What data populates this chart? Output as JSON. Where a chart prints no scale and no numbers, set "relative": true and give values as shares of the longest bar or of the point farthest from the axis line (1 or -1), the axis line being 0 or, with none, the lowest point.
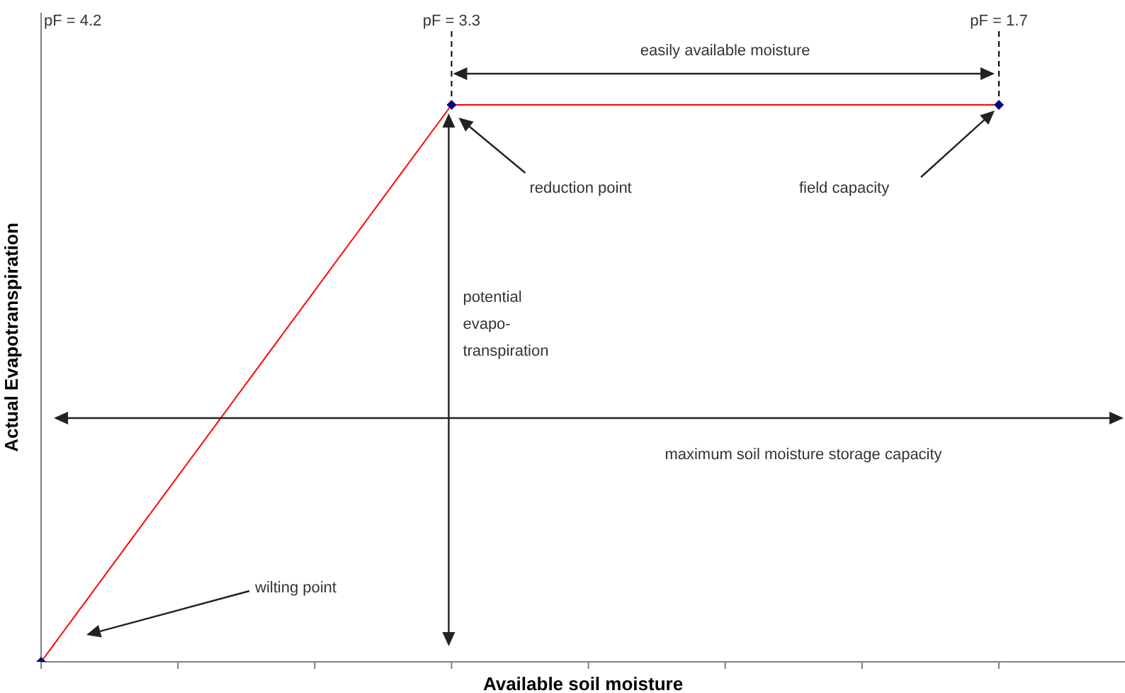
{
  "chart_data": {
    "type": "line",
    "relative": true,
    "xlabel": "Available soil moisture",
    "ylabel": "Actual Evapotranspiration",
    "categories": [
      null,
      null,
      null,
      null,
      null,
      null,
      null,
      null
    ],
    "series": [
      {
        "color": "#ff0000",
        "values": [
          0,
          null,
          null,
          1,
          null,
          null,
          null,
          1
        ]
      }
    ],
    "marker": "diamond",
    "grid": false,
    "legend": false,
    "annotations": [
      "pF = 4.2",
      "pF = 3.3",
      "pF = 1.7",
      "easily available moisture",
      "reduction point",
      "field capacity",
      "potential evapo-transpiration",
      "maximum soil moisture storage capacity",
      "wilting point"
    ]
  }
}
